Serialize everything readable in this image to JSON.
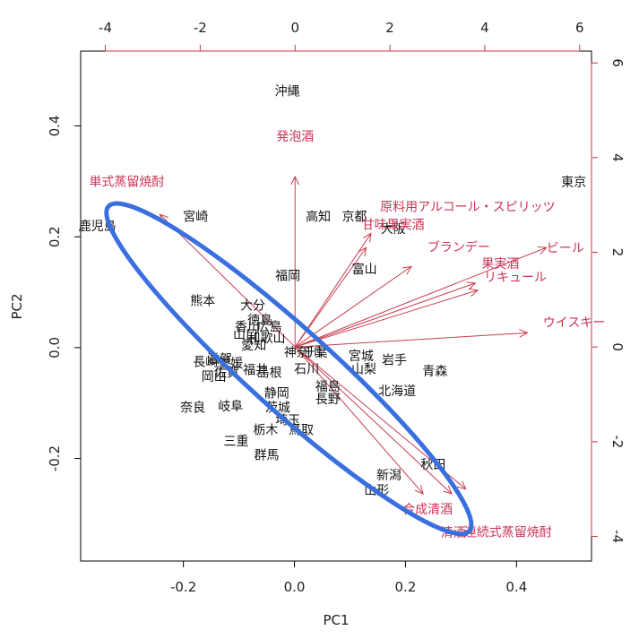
{
  "chart_data": {
    "type": "scatter",
    "subtype": "PCA biplot",
    "title": "",
    "xlabel": "PC1",
    "ylabel": "PC2",
    "xlim": [
      -0.385,
      0.535
    ],
    "ylim": [
      -0.385,
      0.535
    ],
    "xticks": [
      -0.2,
      0.0,
      0.2,
      0.4
    ],
    "yticks": [
      -0.2,
      0.0,
      0.2,
      0.4
    ],
    "xtick_labels": [
      "-0.2",
      "0.0",
      "0.2",
      "0.4"
    ],
    "ytick_labels": [
      "-0.2",
      "0.0",
      "0.2",
      "0.4"
    ],
    "loading_axis": {
      "xlim": [
        -4.52,
        6.25
      ],
      "ylim": [
        -4.52,
        6.25
      ],
      "xticks": [
        -4,
        -2,
        0,
        2,
        4,
        6
      ],
      "yticks": [
        -4,
        -2,
        0,
        2,
        4,
        6
      ],
      "xtick_labels": [
        "-4",
        "-2",
        "0",
        "2",
        "4",
        "6"
      ],
      "ytick_labels": [
        "-4",
        "-2",
        "0",
        "2",
        "4",
        "6"
      ],
      "color": "#cc3344"
    },
    "points": [
      {
        "label": "沖縄",
        "x": -0.013,
        "y": 0.463
      },
      {
        "label": "東京",
        "x": 0.503,
        "y": 0.299
      },
      {
        "label": "鹿児島",
        "x": -0.355,
        "y": 0.22
      },
      {
        "label": "宮崎",
        "x": -0.178,
        "y": 0.237
      },
      {
        "label": "高知",
        "x": 0.043,
        "y": 0.237
      },
      {
        "label": "京都",
        "x": 0.108,
        "y": 0.237
      },
      {
        "label": "大阪",
        "x": 0.178,
        "y": 0.215
      },
      {
        "label": "富山",
        "x": 0.126,
        "y": 0.142
      },
      {
        "label": "福岡",
        "x": -0.012,
        "y": 0.13
      },
      {
        "label": "熊本",
        "x": -0.165,
        "y": 0.085
      },
      {
        "label": "大分",
        "x": -0.075,
        "y": 0.077
      },
      {
        "label": "徳島",
        "x": -0.062,
        "y": 0.05
      },
      {
        "label": "香川",
        "x": -0.085,
        "y": 0.038
      },
      {
        "label": "広島",
        "x": -0.045,
        "y": 0.038
      },
      {
        "label": "山口",
        "x": -0.088,
        "y": 0.024
      },
      {
        "label": "和歌山",
        "x": -0.05,
        "y": 0.018
      },
      {
        "label": "愛知",
        "x": -0.073,
        "y": 0.005
      },
      {
        "label": "神奈川",
        "x": 0.015,
        "y": -0.008
      },
      {
        "label": "千葉",
        "x": 0.037,
        "y": -0.008
      },
      {
        "label": "宮城",
        "x": 0.12,
        "y": -0.015
      },
      {
        "label": "岩手",
        "x": 0.18,
        "y": -0.022
      },
      {
        "label": "山梨",
        "x": 0.125,
        "y": -0.038
      },
      {
        "label": "青森",
        "x": 0.253,
        "y": -0.042
      },
      {
        "label": "石川",
        "x": 0.022,
        "y": -0.038
      },
      {
        "label": "滋賀",
        "x": -0.135,
        "y": -0.02
      },
      {
        "label": "長崎",
        "x": -0.16,
        "y": -0.025
      },
      {
        "label": "佐賀",
        "x": -0.122,
        "y": -0.045
      },
      {
        "label": "愛媛",
        "x": -0.115,
        "y": -0.028
      },
      {
        "label": "岡山",
        "x": -0.145,
        "y": -0.052
      },
      {
        "label": "福井",
        "x": -0.07,
        "y": -0.04
      },
      {
        "label": "島根",
        "x": -0.045,
        "y": -0.045
      },
      {
        "label": "福島",
        "x": 0.06,
        "y": -0.07
      },
      {
        "label": "北海道",
        "x": 0.185,
        "y": -0.078
      },
      {
        "label": "静岡",
        "x": -0.032,
        "y": -0.082
      },
      {
        "label": "長野",
        "x": 0.06,
        "y": -0.092
      },
      {
        "label": "奈良",
        "x": -0.183,
        "y": -0.108
      },
      {
        "label": "岐阜",
        "x": -0.115,
        "y": -0.105
      },
      {
        "label": "茨城",
        "x": -0.03,
        "y": -0.108
      },
      {
        "label": "埼玉",
        "x": -0.012,
        "y": -0.13
      },
      {
        "label": "栃木",
        "x": -0.052,
        "y": -0.148
      },
      {
        "label": "鳥取",
        "x": 0.012,
        "y": -0.148
      },
      {
        "label": "三重",
        "x": -0.105,
        "y": -0.168
      },
      {
        "label": "群馬",
        "x": -0.05,
        "y": -0.193
      },
      {
        "label": "秋田",
        "x": 0.25,
        "y": -0.21
      },
      {
        "label": "新潟",
        "x": 0.17,
        "y": -0.23
      },
      {
        "label": "山形",
        "x": 0.148,
        "y": -0.257
      }
    ],
    "loadings": [
      {
        "name": "発泡酒",
        "x": 0.0,
        "y": 3.6,
        "label_pos": "above"
      },
      {
        "name": "単式蒸留焼酎",
        "x": -2.85,
        "y": 2.8,
        "label_pos": "left-above"
      },
      {
        "name": "原料用アルコール・スピリッツ",
        "x": 1.6,
        "y": 2.4,
        "label_pos": "right-above"
      },
      {
        "name": "甘味果実酒",
        "x": 1.5,
        "y": 2.1,
        "label_pos": "above"
      },
      {
        "name": "ブランデー",
        "x": 2.45,
        "y": 1.7,
        "label_pos": "right"
      },
      {
        "name": "果実酒",
        "x": 3.8,
        "y": 1.35,
        "label_pos": "right-above"
      },
      {
        "name": "ビール",
        "x": 5.3,
        "y": 2.1,
        "label_pos": "right"
      },
      {
        "name": "リキュール",
        "x": 3.85,
        "y": 1.2,
        "label_pos": "right"
      },
      {
        "name": "ウイスキー",
        "x": 4.9,
        "y": 0.3,
        "label_pos": "right"
      },
      {
        "name": "合成清酒",
        "x": 2.7,
        "y": -3.1,
        "label_pos": "below"
      },
      {
        "name": "連続式蒸留焼酎",
        "x": 3.6,
        "y": -3.0,
        "label_pos": "below-right"
      },
      {
        "name": "清酒",
        "x": 3.3,
        "y": -3.1,
        "label_pos": "below"
      }
    ],
    "ellipse": {
      "center_x": -0.01,
      "center_y": -0.038,
      "semi_major": 0.437,
      "semi_minor": 0.074,
      "angle_deg": -42,
      "color": "#3a6fe0"
    }
  }
}
